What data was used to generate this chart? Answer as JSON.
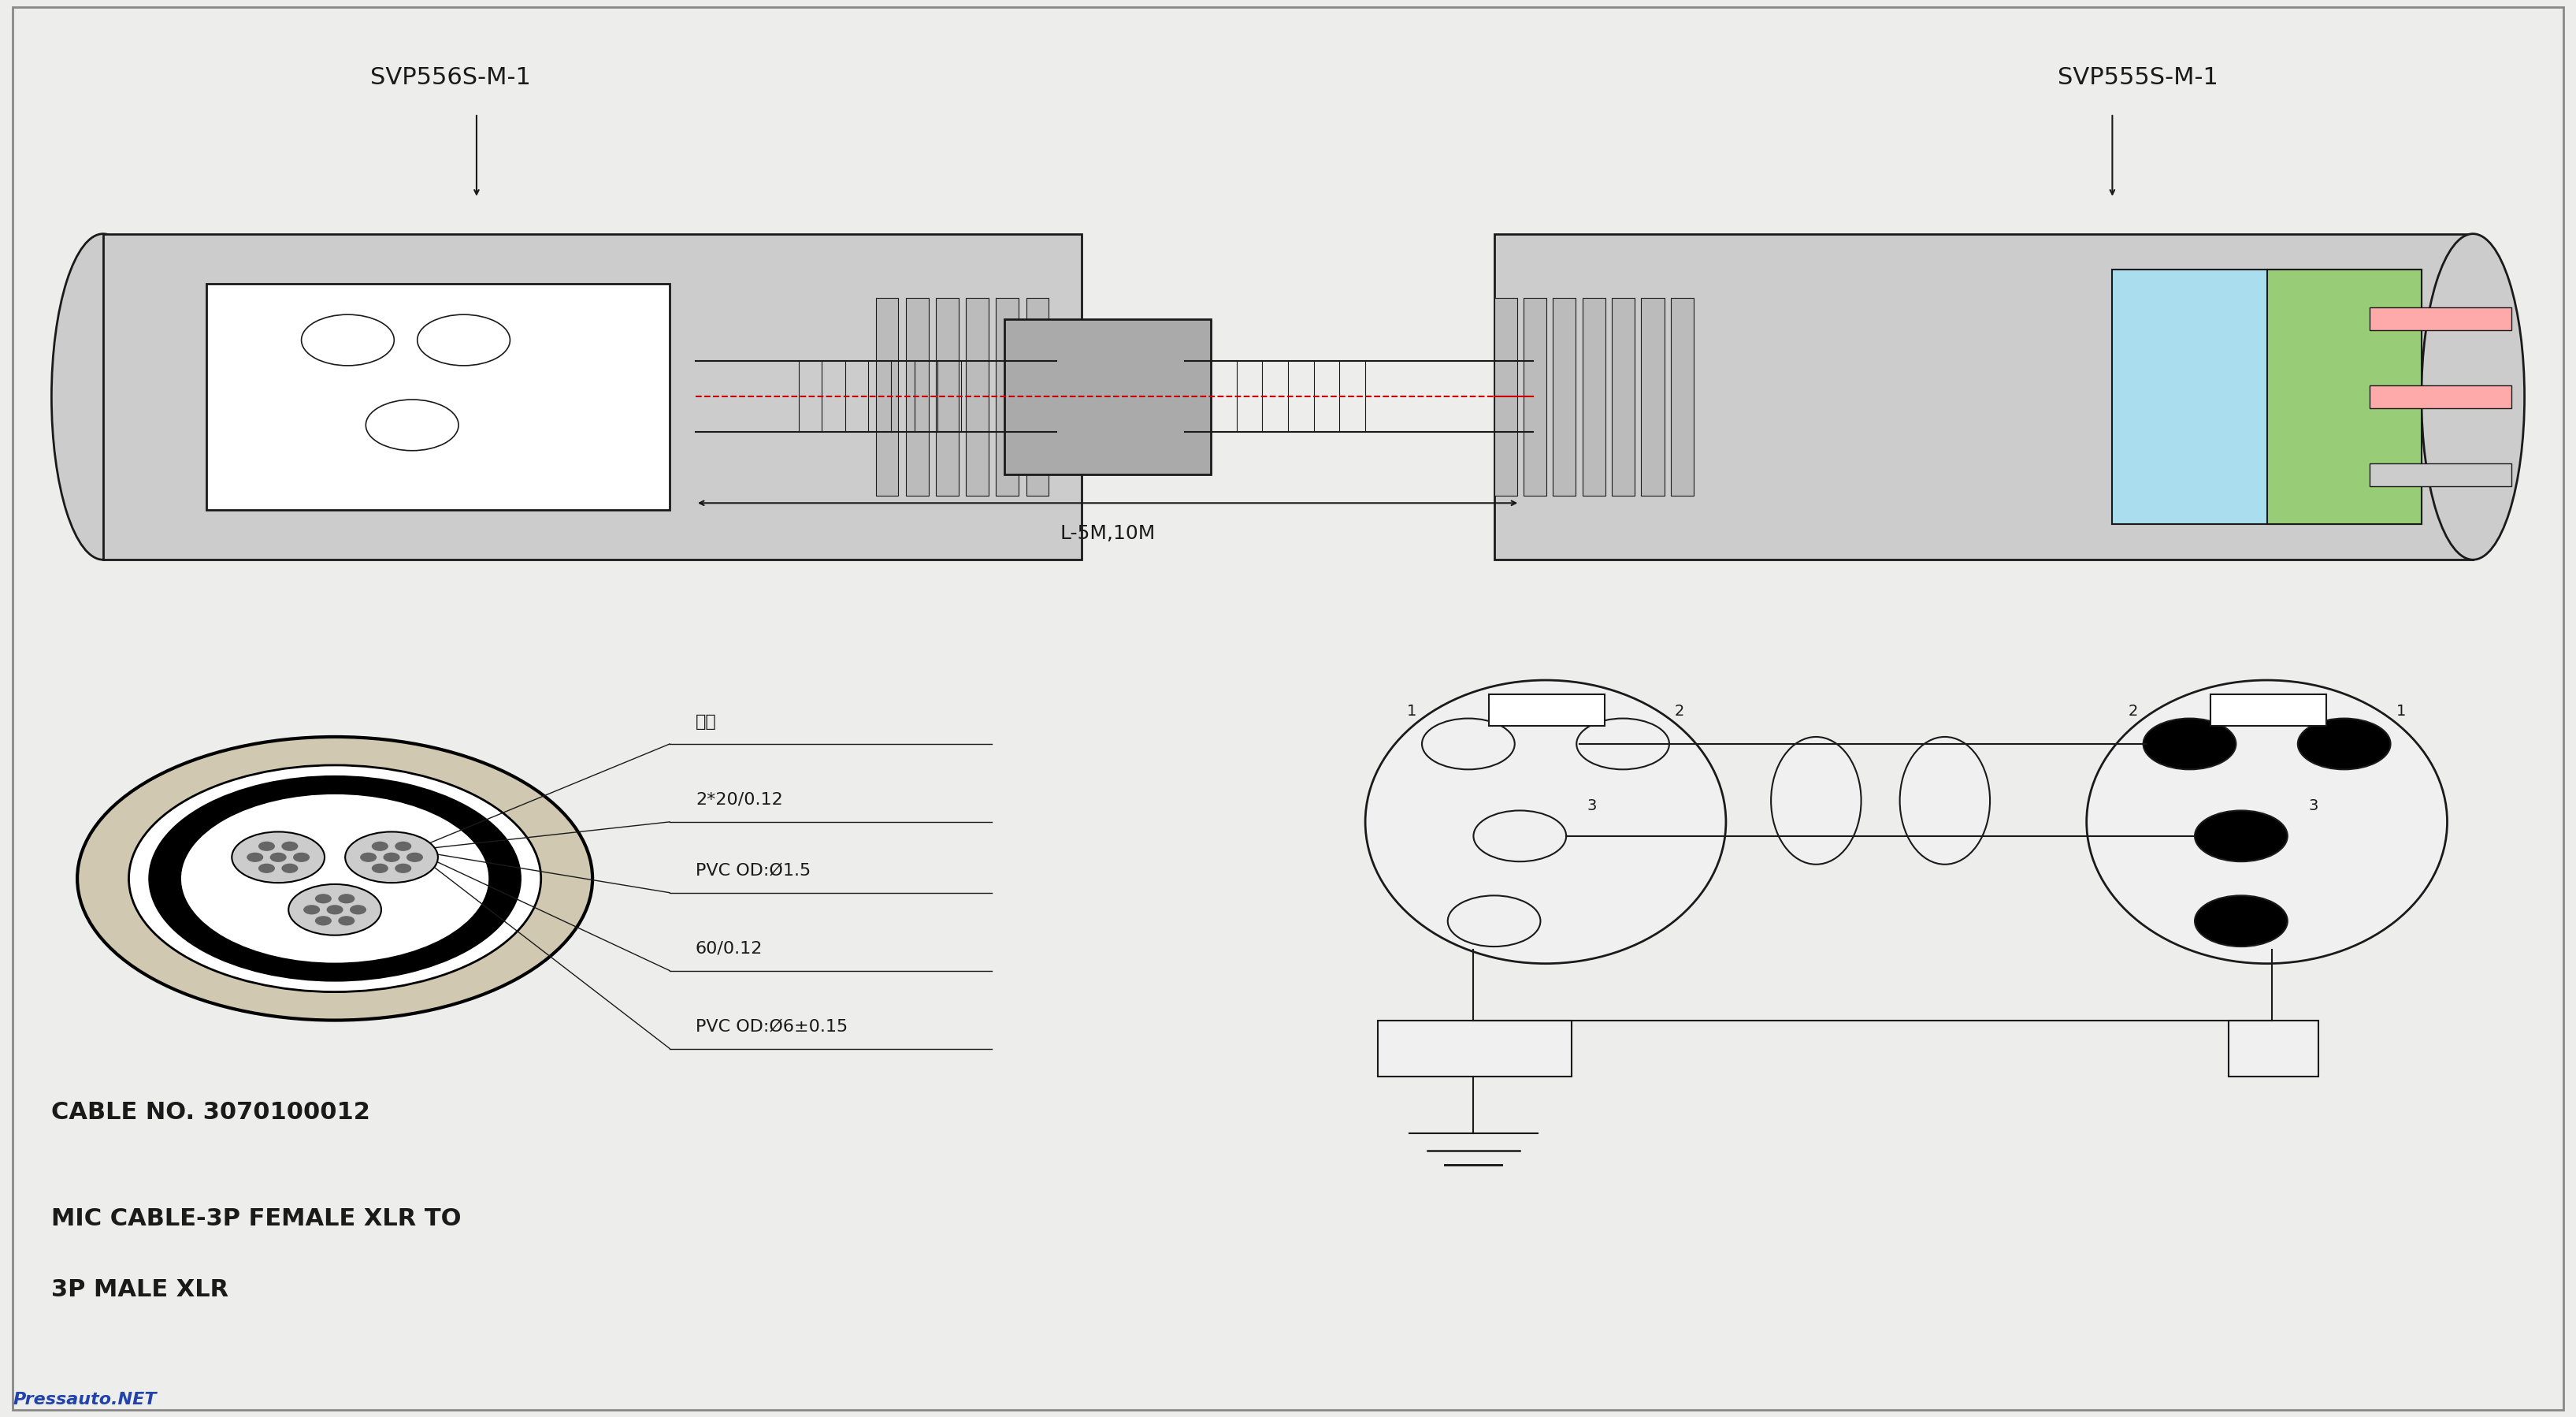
{
  "bg_color": "#ededeb",
  "line_color": "#1a1a1a",
  "red_line_color": "#cc0000",
  "cyan_fill": "#aaddee",
  "green_fill": "#99cc77",
  "title_label": "SVP556S-M-1",
  "title_label2": "SVP555S-M-1",
  "cable_no": "CABLE NO. 3070100012",
  "mic_cable": "MIC CABLE-3P FEMALE XLR TO",
  "mic_cable2": "3P MALE XLR",
  "dimension_label": "L-5M,10M",
  "cross_section_labels": [
    "棉线",
    "2*20/0.12",
    "PVC OD:Ø1.5",
    "60/0.12",
    "PVC OD:Ø6±0.15"
  ],
  "pressauto": "Pressauto.NET"
}
